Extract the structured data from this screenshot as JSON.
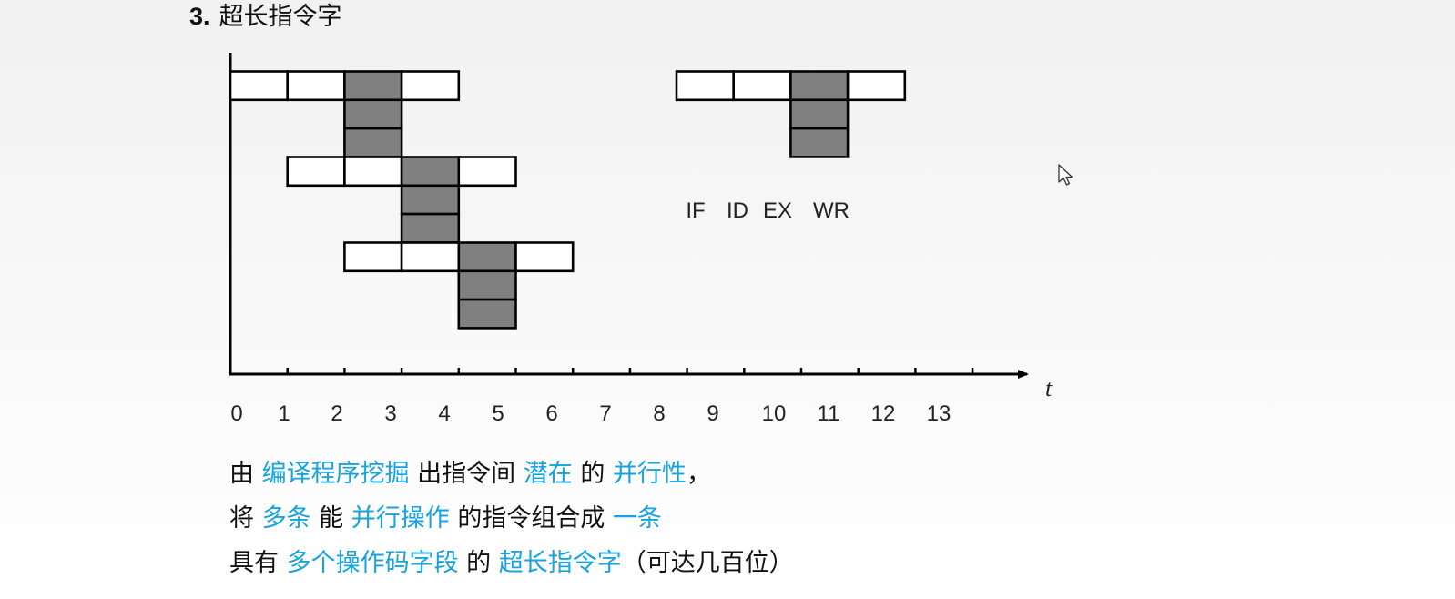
{
  "title": {
    "number": "3.",
    "text": "超长指令字"
  },
  "diagram": {
    "time_axis_label": "t",
    "tick_labels": [
      "0",
      "1",
      "2",
      "3",
      "4",
      "5",
      "6",
      "7",
      "8",
      "9",
      "10",
      "11",
      "12",
      "13"
    ],
    "legend_labels": [
      "IF",
      "ID",
      "EX",
      "WR"
    ],
    "instruction_groups": [
      {
        "start_time": 0,
        "parallel_ops": 3
      },
      {
        "start_time": 1,
        "parallel_ops": 3
      },
      {
        "start_time": 2,
        "parallel_ops": 3
      }
    ],
    "legend_group": {
      "parallel_ops": 3
    },
    "colors": {
      "fill": "#808080",
      "stroke": "#000000",
      "box": "#ffffff"
    }
  },
  "description": [
    [
      {
        "t": "由 ",
        "hl": false
      },
      {
        "t": "编译程序挖掘",
        "hl": true
      },
      {
        "t": " 出指令间 ",
        "hl": false
      },
      {
        "t": "潜在",
        "hl": true
      },
      {
        "t": " 的 ",
        "hl": false
      },
      {
        "t": "并行性",
        "hl": true
      },
      {
        "t": "，",
        "hl": false
      }
    ],
    [
      {
        "t": "将 ",
        "hl": false
      },
      {
        "t": "多条",
        "hl": true
      },
      {
        "t": " 能 ",
        "hl": false
      },
      {
        "t": "并行操作",
        "hl": true
      },
      {
        "t": " 的指令组合成 ",
        "hl": false
      },
      {
        "t": "一条",
        "hl": true
      }
    ],
    [
      {
        "t": "具有 ",
        "hl": false
      },
      {
        "t": "多个操作码字段",
        "hl": true
      },
      {
        "t": " 的 ",
        "hl": false
      },
      {
        "t": "超长指令字",
        "hl": true
      },
      {
        "t": "（可达几百位）",
        "hl": false
      }
    ]
  ],
  "highlight_color": "#17a3dd"
}
